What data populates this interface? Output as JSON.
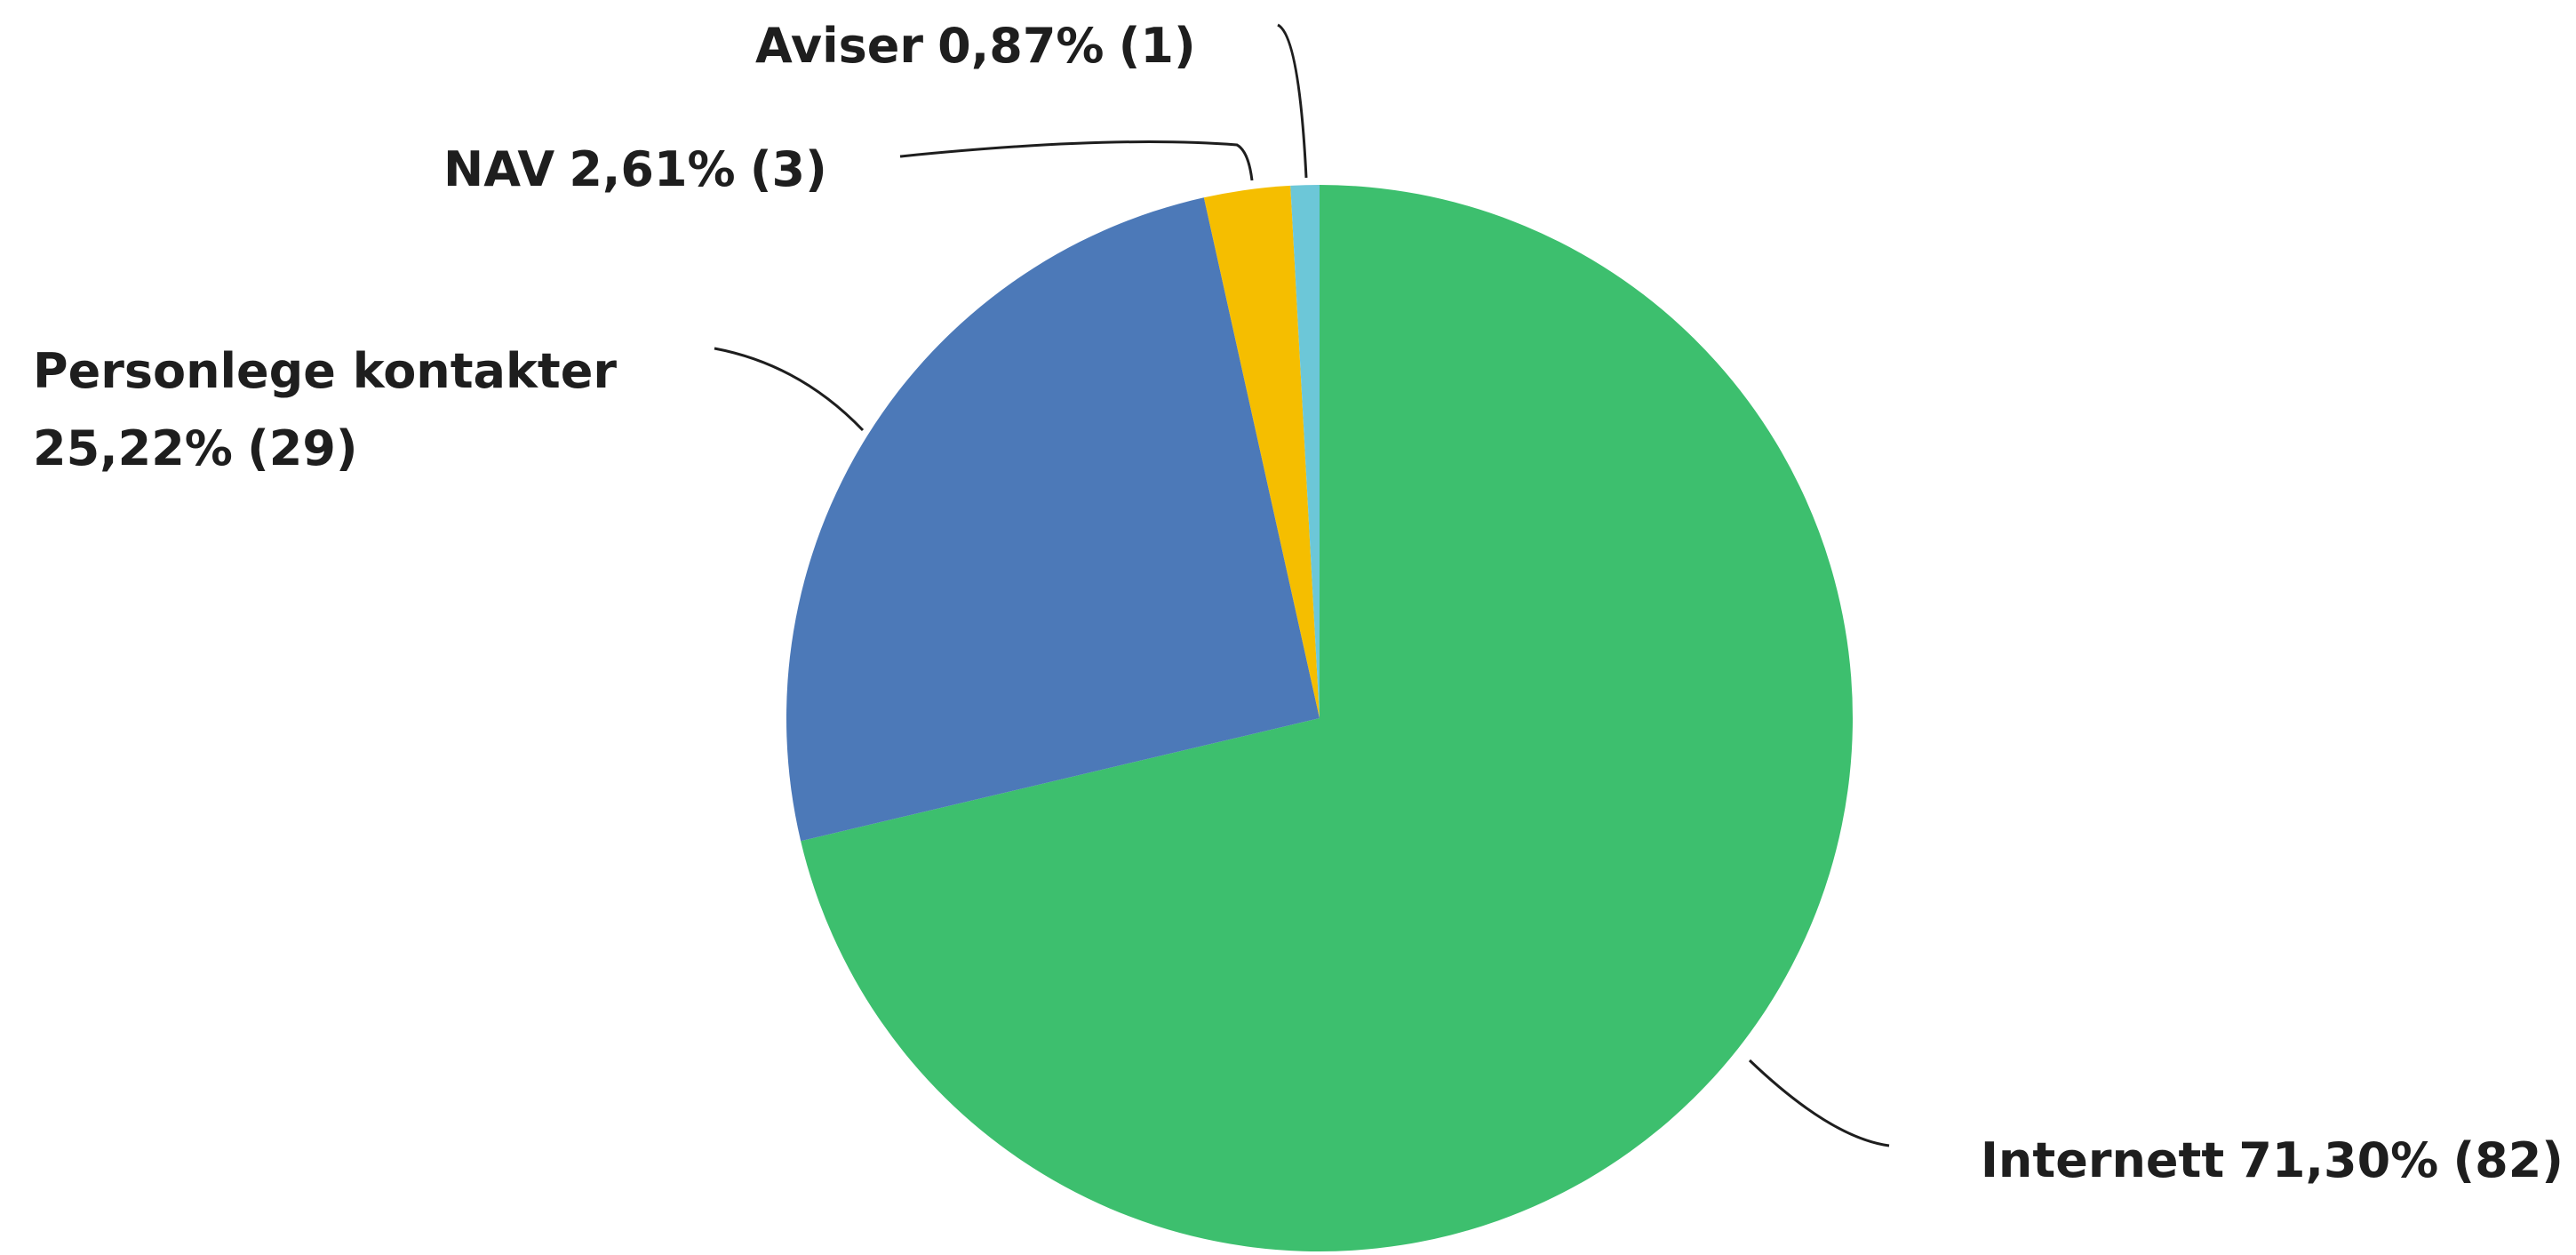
{
  "chart_data": {
    "type": "pie",
    "categories": [
      "Internett",
      "Personlege kontakter",
      "NAV",
      "Aviser"
    ],
    "values": [
      71.3,
      25.22,
      2.61,
      0.87
    ],
    "value_labels": [
      "71,30%",
      "25,22%",
      "2,61%",
      "0,87%"
    ],
    "counts": [
      82,
      29,
      3,
      1
    ],
    "count_labels": [
      "(82)",
      "(29)",
      "(3)",
      "(1)"
    ],
    "colors": [
      "#3dbf6e",
      "#4c79b8",
      "#f5be00",
      "#6cc7d8"
    ]
  }
}
